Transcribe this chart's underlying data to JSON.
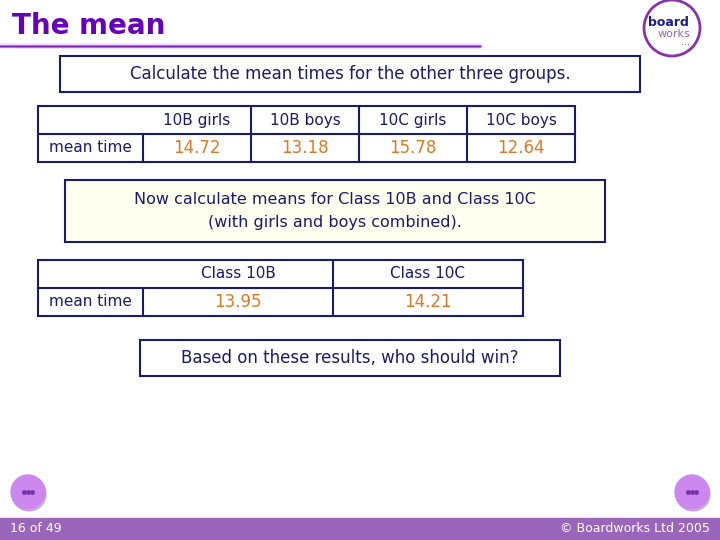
{
  "title": "The mean",
  "title_color": "#6600bb",
  "bg_color": "#ffffff",
  "slide_bg": "#ffffff",
  "instruction1": "Calculate the mean times for the other three groups.",
  "instruction2_line1": "Now calculate means for Class 10B and Class 10C",
  "instruction2_line2": "(with girls and boys combined).",
  "instruction3": "Based on these results, who should win?",
  "table1_headers": [
    "10B girls",
    "10B boys",
    "10C girls",
    "10C boys"
  ],
  "table1_row_label": "mean time",
  "table1_values": [
    "14.72",
    "13.18",
    "15.78",
    "12.64"
  ],
  "table2_headers": [
    "Class 10B",
    "Class 10C"
  ],
  "table2_row_label": "mean time",
  "table2_values": [
    "13.95",
    "14.21"
  ],
  "value_color": "#e07820",
  "header_color": "#1a1a6e",
  "label_color": "#1a1a6e",
  "border_color": "#1a1a6e",
  "box1_bg": "#ffffff",
  "box2_bg": "#fffff0",
  "box3_bg": "#ffffff",
  "footer_text": "16 of 49",
  "footer_right": "© Boardworks Ltd 2005",
  "footer_bg": "#9966bb",
  "logo_circle_color": "#8833aa",
  "logo_text1": "board",
  "logo_text2": "works",
  "logo_dots": "...",
  "nav_btn_color": "#cc88ee",
  "nav_dot_color": "#7733aa"
}
